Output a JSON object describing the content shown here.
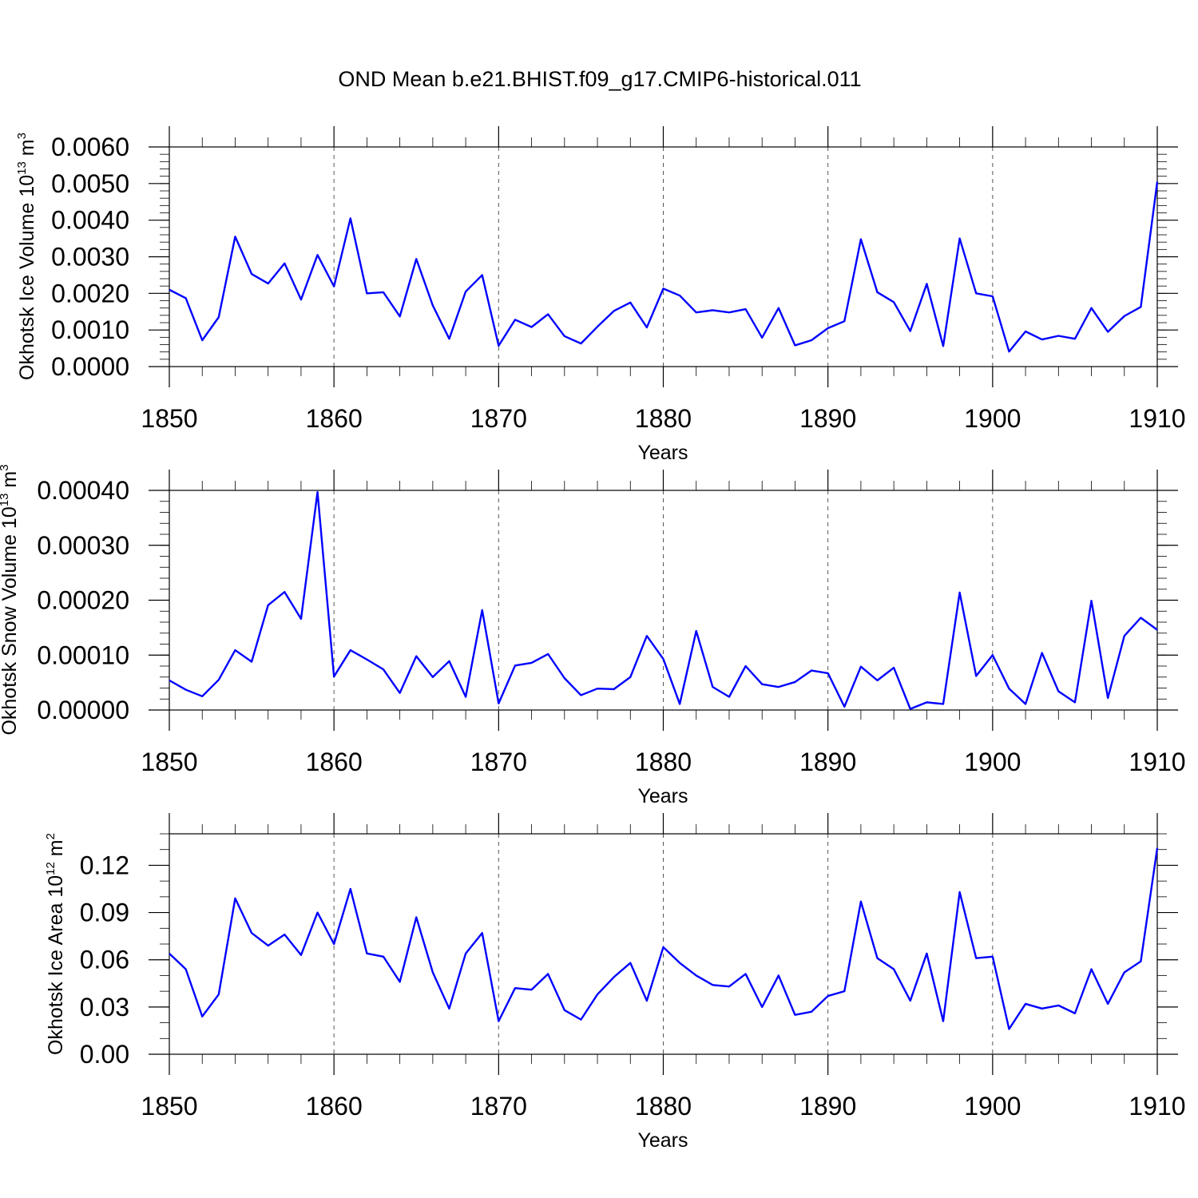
{
  "title": "OND Mean b.e21.BHIST.f09_g17.CMIP6-historical.011",
  "chart_data": [
    {
      "type": "line",
      "ylabel": "Okhotsk Ice Volume 10",
      "ylabel_exp": "13",
      "ylabel_unit": " m",
      "ylabel_unit_exp": "3",
      "xlabel": "Years",
      "xlim": [
        1850,
        1910
      ],
      "ylim": [
        0,
        0.006
      ],
      "xticks": [
        "1850",
        "1860",
        "1870",
        "1880",
        "1890",
        "1900",
        "1910"
      ],
      "yticks": [
        "0.0000",
        "0.0010",
        "0.0020",
        "0.0030",
        "0.0040",
        "0.0050",
        "0.0060"
      ],
      "color": "#0000ff",
      "x_start": 1850,
      "values": [
        0.0021,
        0.00187,
        0.00072,
        0.00135,
        0.00355,
        0.00253,
        0.00227,
        0.00282,
        0.00183,
        0.00305,
        0.00219,
        0.00405,
        0.002,
        0.00203,
        0.00137,
        0.00294,
        0.00167,
        0.00076,
        0.00205,
        0.0025,
        0.00057,
        0.00128,
        0.00108,
        0.00143,
        0.00083,
        0.00063,
        0.00109,
        0.00152,
        0.00175,
        0.00107,
        0.00213,
        0.00194,
        0.00148,
        0.00154,
        0.00148,
        0.00157,
        0.00079,
        0.0016,
        0.00058,
        0.00072,
        0.00105,
        0.00124,
        0.00348,
        0.00203,
        0.00176,
        0.00097,
        0.00226,
        0.00056,
        0.0035,
        0.002,
        0.00192,
        0.00041,
        0.00096,
        0.00074,
        0.00084,
        0.00076,
        0.0016,
        0.00095,
        0.00138,
        0.00163,
        0.00505
      ]
    },
    {
      "type": "line",
      "ylabel": "Okhotsk Snow Volume 10",
      "ylabel_exp": "13",
      "ylabel_unit": " m",
      "ylabel_unit_exp": "3",
      "xlabel": "Years",
      "xlim": [
        1850,
        1910
      ],
      "ylim": [
        0,
        0.0004
      ],
      "xticks": [
        "1850",
        "1860",
        "1870",
        "1880",
        "1890",
        "1900",
        "1910"
      ],
      "yticks": [
        "0.00000",
        "0.00010",
        "0.00020",
        "0.00030",
        "0.00040"
      ],
      "color": "#0000ff",
      "x_start": 1850,
      "values": [
        5.4e-05,
        3.7e-05,
        2.5e-05,
        5.5e-05,
        0.000109,
        8.8e-05,
        0.000191,
        0.000215,
        0.000166,
        0.000397,
        6.1e-05,
        0.000109,
        9.2e-05,
        7.4e-05,
        3.1e-05,
        9.8e-05,
        6e-05,
        8.9e-05,
        2.4e-05,
        0.000182,
        1.2e-05,
        8.1e-05,
        8.6e-05,
        0.000102,
        5.8e-05,
        2.7e-05,
        3.9e-05,
        3.8e-05,
        6e-05,
        0.000135,
        9.3e-05,
        1.1e-05,
        0.000144,
        4.2e-05,
        2.4e-05,
        8e-05,
        4.7e-05,
        4.2e-05,
        5.1e-05,
        7.2e-05,
        6.7e-05,
        6e-06,
        7.9e-05,
        5.4e-05,
        7.7e-05,
        2e-06,
        1.4e-05,
        1.1e-05,
        0.000214,
        6.2e-05,
        0.0001,
        3.9e-05,
        1.1e-05,
        0.000104,
        3.4e-05,
        1.4e-05,
        0.000199,
        2.2e-05,
        0.000135,
        0.000168,
        0.000146
      ]
    },
    {
      "type": "line",
      "ylabel": "Okhotsk Ice Area 10",
      "ylabel_exp": "12",
      "ylabel_unit": " m",
      "ylabel_unit_exp": "2",
      "xlabel": "Years",
      "xlim": [
        1850,
        1910
      ],
      "ylim": [
        0,
        0.14
      ],
      "xticks": [
        "1850",
        "1860",
        "1870",
        "1880",
        "1890",
        "1900",
        "1910"
      ],
      "yticks": [
        "0.00",
        "0.03",
        "0.06",
        "0.09",
        "0.12"
      ],
      "ytick_values": [
        0,
        0.03,
        0.06,
        0.09,
        0.12
      ],
      "color": "#0000ff",
      "x_start": 1850,
      "values": [
        0.064,
        0.054,
        0.024,
        0.038,
        0.099,
        0.077,
        0.069,
        0.076,
        0.063,
        0.09,
        0.07,
        0.105,
        0.064,
        0.062,
        0.046,
        0.087,
        0.052,
        0.029,
        0.064,
        0.077,
        0.021,
        0.042,
        0.041,
        0.051,
        0.028,
        0.022,
        0.038,
        0.049,
        0.058,
        0.034,
        0.068,
        0.058,
        0.05,
        0.044,
        0.043,
        0.051,
        0.03,
        0.05,
        0.025,
        0.027,
        0.037,
        0.04,
        0.097,
        0.061,
        0.054,
        0.034,
        0.064,
        0.021,
        0.103,
        0.061,
        0.062,
        0.016,
        0.032,
        0.029,
        0.031,
        0.026,
        0.054,
        0.032,
        0.052,
        0.059,
        0.131
      ]
    }
  ]
}
